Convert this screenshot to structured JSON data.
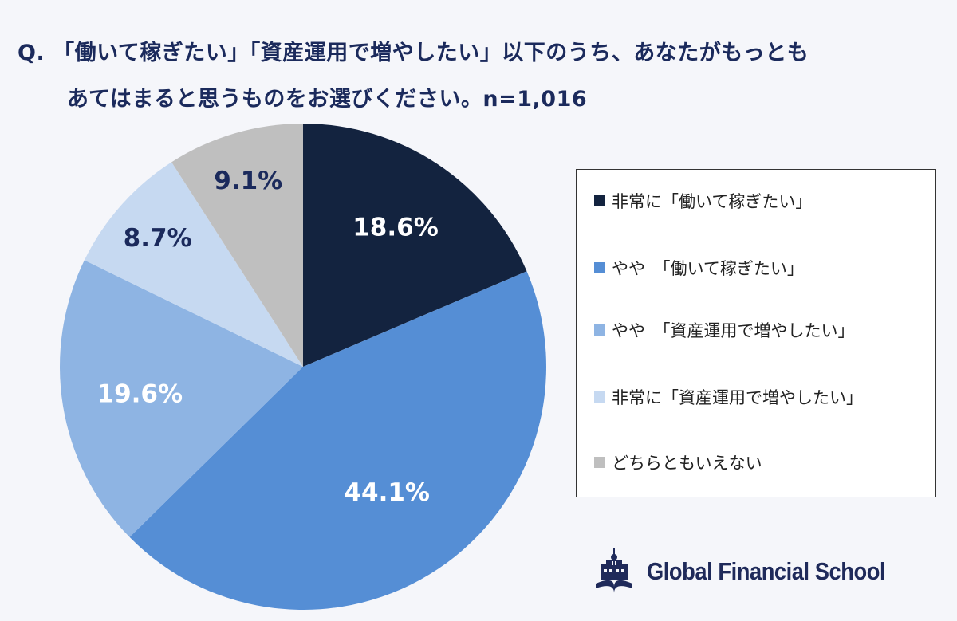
{
  "title": {
    "line1": "Q. 「働いて稼ぎたい」「資産運用で増やしたい」以下のうち、あなたがもっとも",
    "line2": "あてはまると思うものをお選びください。n=1,016"
  },
  "chart_data": {
    "type": "pie",
    "title": "Q. 「働いて稼ぎたい」「資産運用で増やしたい」以下のうち、あなたがもっともあてはまると思うものをお選びください。n=1,016",
    "start": "top, clockwise",
    "legend_position": "right",
    "slices": [
      {
        "label": "非常に「働いて稼ぎたい」",
        "value": 18.6,
        "display": "18.6%",
        "color": "#13233f",
        "text_color": "#ffffff"
      },
      {
        "label": "やや　「働いて稼ぎたい」",
        "value": 44.1,
        "display": "44.1%",
        "color": "#558ed5",
        "text_color": "#ffffff"
      },
      {
        "label": "やや　「資産運用で増やしたい」",
        "value": 19.6,
        "display": "19.6%",
        "color": "#8eb4e3",
        "text_color": "#ffffff"
      },
      {
        "label": "非常に「資産運用で増やしたい」",
        "value": 8.7,
        "display": "8.7%",
        "color": "#c6d9f1",
        "text_color": "#1b2a5c"
      },
      {
        "label": "どちらともいえない",
        "value": 9.1,
        "display": "9.1%",
        "color": "#bfbfbf",
        "text_color": "#1b2a5c"
      }
    ]
  },
  "logo": {
    "text": "Global Financial School",
    "color": "#1f2a5a"
  }
}
